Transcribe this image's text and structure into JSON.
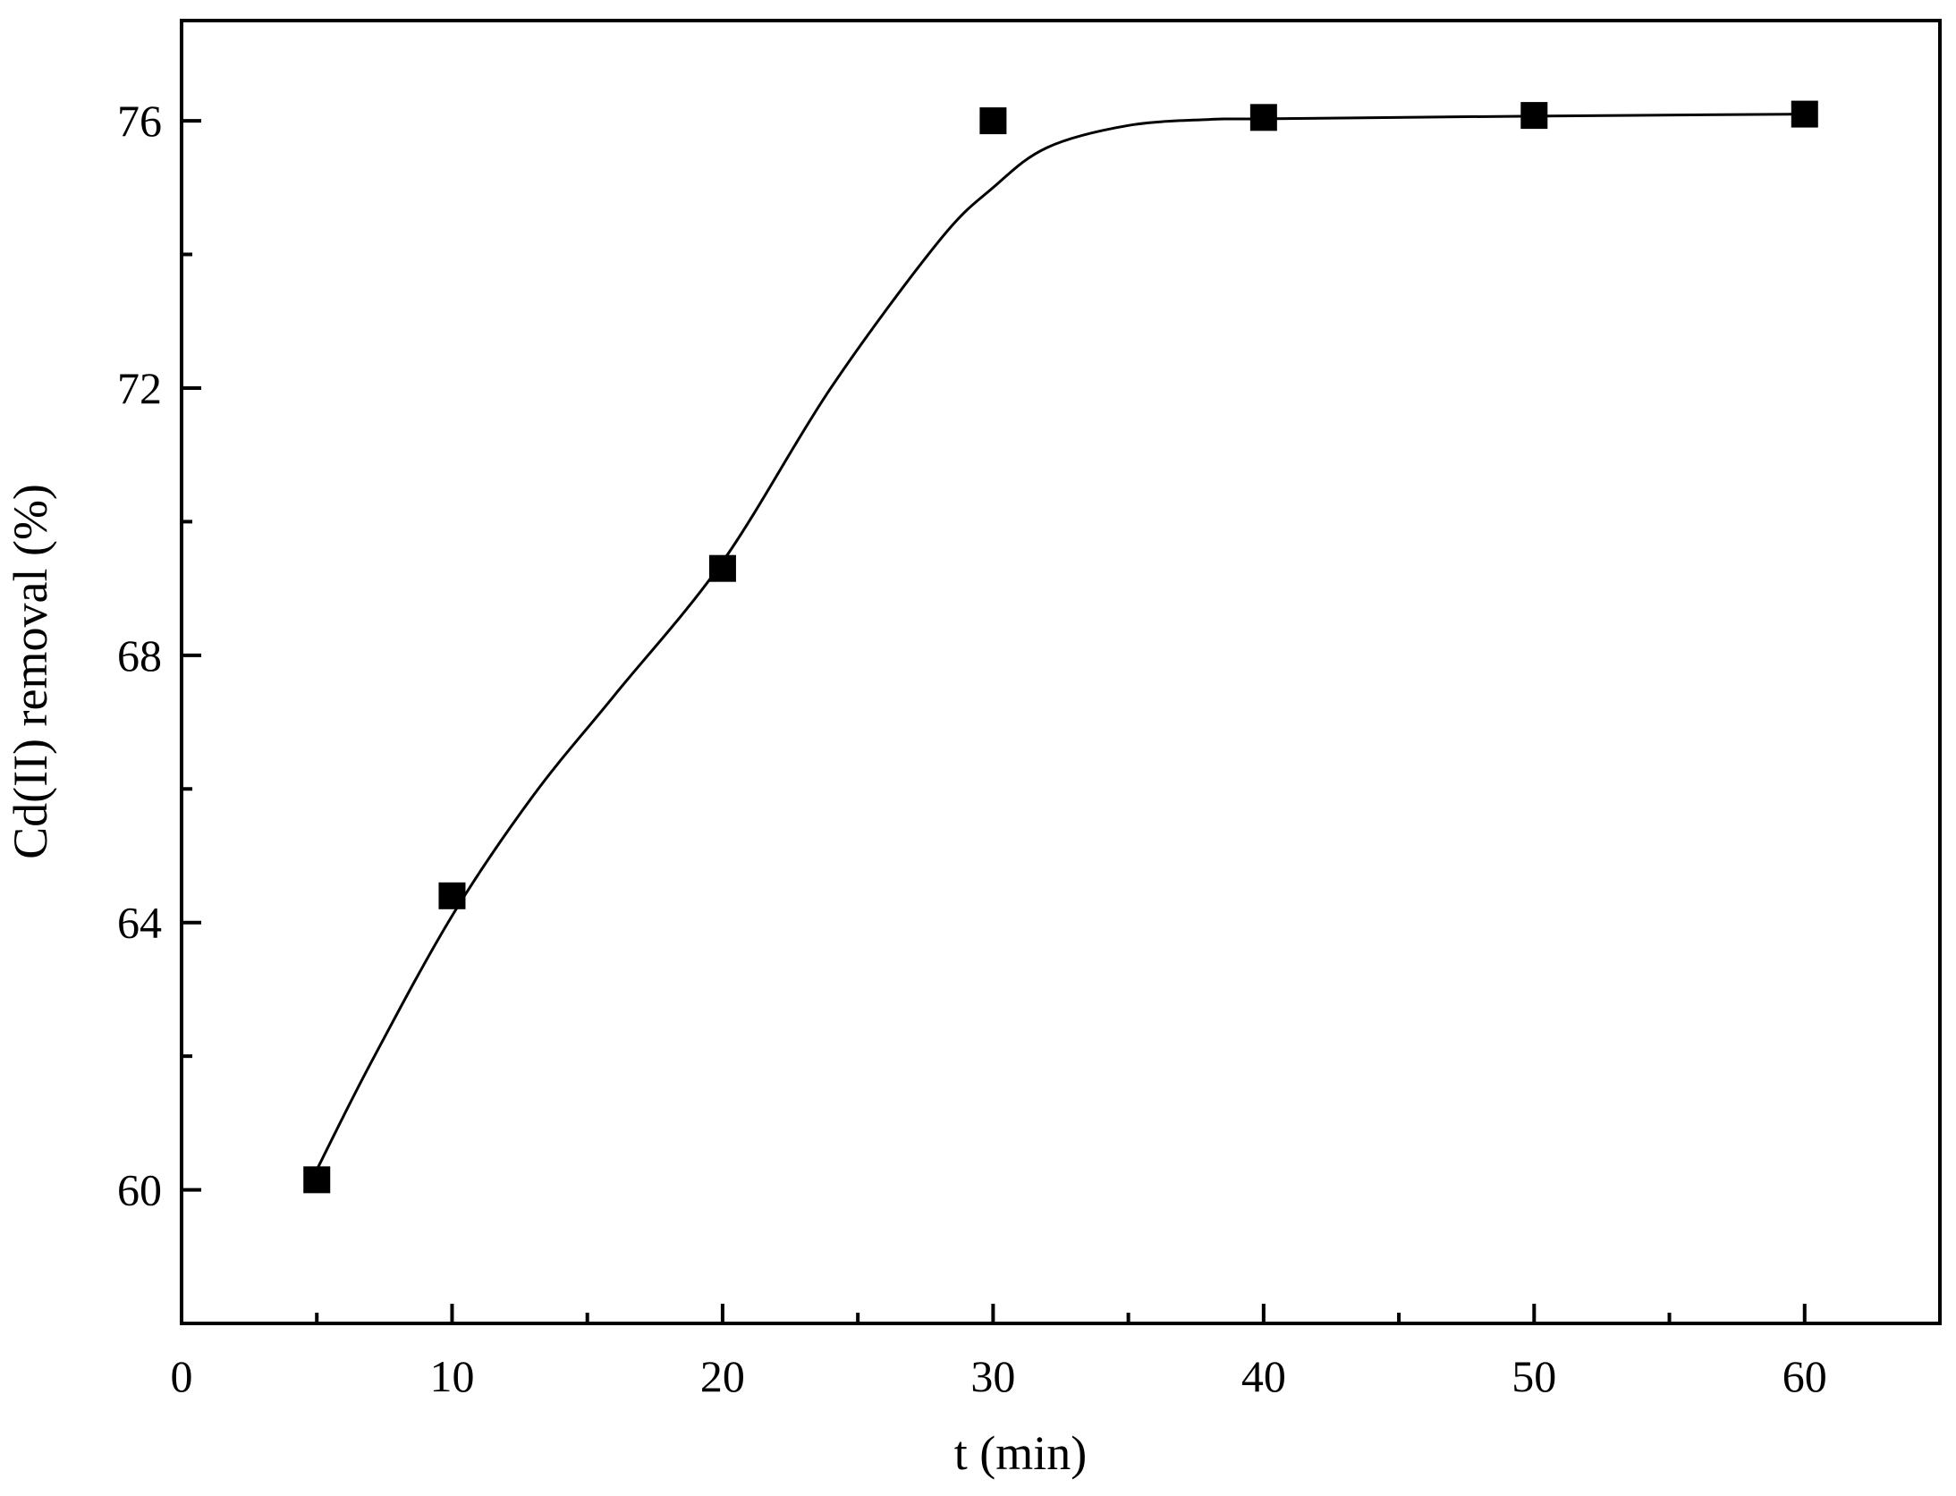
{
  "chart_data": {
    "type": "scatter",
    "title": "",
    "xlabel": "t (min)",
    "ylabel": "Cd(II) removal (%)",
    "xlim": [
      0,
      65
    ],
    "ylim": [
      58,
      77.5
    ],
    "x_ticks": [
      0,
      10,
      20,
      30,
      40,
      50,
      60
    ],
    "x_tick_labels": [
      "0",
      "10",
      "20",
      "30",
      "40",
      "50",
      "60"
    ],
    "x_minor_ticks": [
      5,
      15,
      25,
      35,
      45,
      55,
      65
    ],
    "y_ticks": [
      60,
      64,
      68,
      72,
      76
    ],
    "y_tick_labels": [
      "60",
      "64",
      "68",
      "72",
      "76"
    ],
    "y_minor_ticks": [
      62,
      66,
      70,
      74
    ],
    "grid": false,
    "legend": false,
    "series": [
      {
        "marker": "filled-square",
        "color": "#000000",
        "x": [
          5,
          10,
          20,
          30,
          40,
          50,
          60
        ],
        "y": [
          60.15,
          64.4,
          69.3,
          76.0,
          76.05,
          76.08,
          76.1
        ]
      }
    ],
    "fit_curve": {
      "style": "smooth-line",
      "color": "#000000",
      "x": [
        5,
        7,
        10,
        13,
        16,
        20,
        24,
        28,
        30,
        32,
        35,
        38,
        40,
        50,
        60
      ],
      "y": [
        60.3,
        61.9,
        64.1,
        65.9,
        67.4,
        69.4,
        72.0,
        74.2,
        75.0,
        75.6,
        75.93,
        76.02,
        76.03,
        76.07,
        76.1
      ]
    }
  }
}
